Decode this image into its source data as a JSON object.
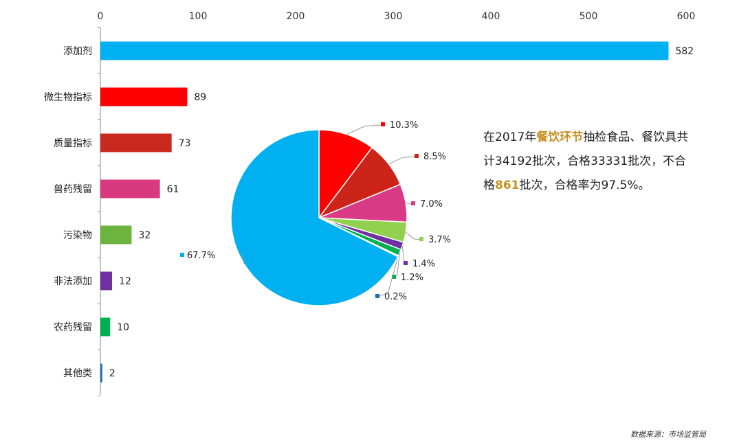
{
  "chart_data": [
    {
      "type": "bar",
      "orientation": "horizontal",
      "categories": [
        "添加剂",
        "微生物指标",
        "质量指标",
        "兽药残留",
        "污染物",
        "非法添加",
        "农药残留",
        "其他类"
      ],
      "values": [
        582,
        89,
        73,
        61,
        32,
        12,
        10,
        2
      ],
      "colors": [
        "#00b0f0",
        "#ff0000",
        "#c8281e",
        "#d9397f",
        "#6db33f",
        "#7030a0",
        "#00b050",
        "#1f6eb3"
      ],
      "xlim": [
        0,
        600
      ],
      "xticks": [
        0,
        100,
        200,
        300,
        400,
        500,
        600
      ],
      "xaxis_position": "top",
      "data_labels": true,
      "grid": false
    },
    {
      "type": "pie",
      "values": [
        67.7,
        10.3,
        8.5,
        7.0,
        3.7,
        1.4,
        1.2,
        0.2
      ],
      "labels": [
        "67.7%",
        "10.3%",
        "8.5%",
        "7.0%",
        "3.7%",
        "1.4%",
        "1.2%",
        "0.2%"
      ],
      "colors": [
        "#00b0f0",
        "#ff0000",
        "#cc2418",
        "#d83a86",
        "#92d050",
        "#7030a0",
        "#00b050",
        "#1f6eb3"
      ]
    }
  ],
  "summary": {
    "p1": "在2017年",
    "hl1": "餐饮环节",
    "p2": "抽检食品、餐饮具共计34192批次，合格33331批次，不合格",
    "hl2": "861",
    "p3": "批次，合格率为97.5%。"
  },
  "source_text": "数据来源：市场监管局"
}
